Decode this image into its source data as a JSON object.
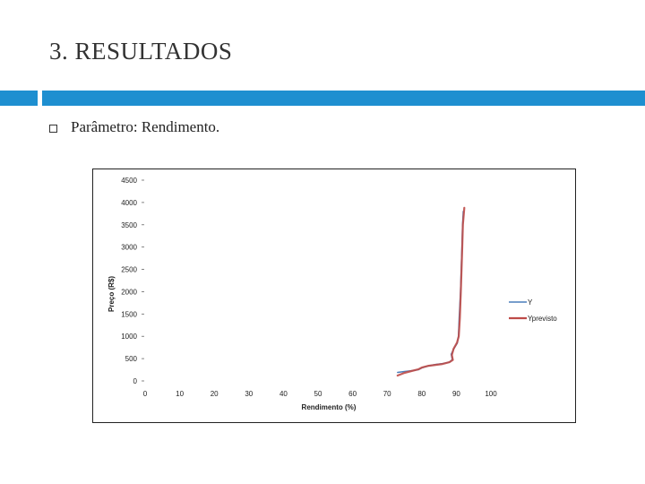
{
  "slide": {
    "title": "3. RESULTADOS",
    "bullet": "Parâmetro: Rendimento."
  },
  "colors": {
    "accent": "#1e8fd0",
    "series_y": "#4a7ebb",
    "series_yprevisto": "#be4b48"
  },
  "chart_data": {
    "type": "line",
    "xlabel": "Rendimento (%)",
    "ylabel": "Preço (R$)",
    "xlim": [
      0,
      100
    ],
    "ylim": [
      0,
      4500
    ],
    "x_ticks": [
      "0",
      "10",
      "20",
      "30",
      "40",
      "50",
      "60",
      "70",
      "80",
      "90",
      "100"
    ],
    "y_ticks": [
      "0",
      "500",
      "1000",
      "1500",
      "2000",
      "2500",
      "3000",
      "3500",
      "4000",
      "4500"
    ],
    "grid": false,
    "legend_position": "right",
    "series": [
      {
        "name": "Y",
        "color": "#4a7ebb",
        "points": [
          [
            73,
            190
          ],
          [
            75,
            210
          ],
          [
            77,
            230
          ],
          [
            79,
            250
          ],
          [
            80,
            290
          ],
          [
            82,
            340
          ],
          [
            84,
            370
          ],
          [
            86,
            390
          ],
          [
            88,
            420
          ],
          [
            88.8,
            480
          ],
          [
            88.5,
            600
          ],
          [
            89.5,
            750
          ],
          [
            90.3,
            850
          ],
          [
            90.6,
            1000
          ],
          [
            90.8,
            1400
          ],
          [
            91.2,
            2000
          ],
          [
            91.4,
            2500
          ],
          [
            91.6,
            3000
          ],
          [
            91.8,
            3500
          ],
          [
            92,
            3800
          ]
        ]
      },
      {
        "name": "Yprevisto",
        "color": "#be4b48",
        "points": [
          [
            73,
            120
          ],
          [
            75,
            180
          ],
          [
            77,
            220
          ],
          [
            79,
            260
          ],
          [
            80,
            300
          ],
          [
            82,
            340
          ],
          [
            84,
            360
          ],
          [
            86,
            380
          ],
          [
            88,
            420
          ],
          [
            89,
            470
          ],
          [
            88.7,
            580
          ],
          [
            89.2,
            720
          ],
          [
            90.2,
            860
          ],
          [
            90.7,
            1000
          ],
          [
            91,
            1400
          ],
          [
            91.3,
            2000
          ],
          [
            91.5,
            2500
          ],
          [
            91.7,
            3000
          ],
          [
            91.9,
            3500
          ],
          [
            92.3,
            3880
          ]
        ]
      }
    ]
  }
}
